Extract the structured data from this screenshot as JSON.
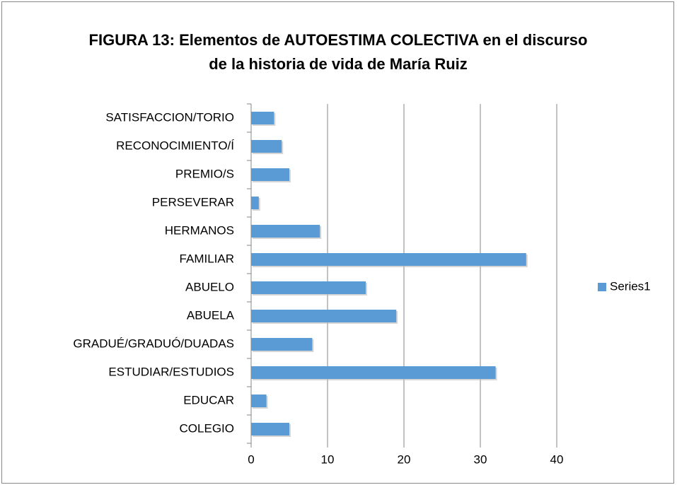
{
  "chart_data": {
    "type": "bar",
    "orientation": "horizontal",
    "title": "FIGURA 13: Elementos de AUTOESTIMA COLECTIVA en el discurso de la historia de vida de María Ruiz",
    "categories": [
      "COLEGIO",
      "EDUCAR",
      "ESTUDIAR/ESTUDIOS",
      "GRADUÉ/GRADUÓ/DUADAS",
      "ABUELA",
      "ABUELO",
      "FAMILIAR",
      "HERMANOS",
      "PERSEVERAR",
      "PREMIO/S",
      "RECONOCIMIENTO/Í",
      "SATISFACCION/TORIO"
    ],
    "series": [
      {
        "name": "Series1",
        "color": "#5b9bd5",
        "values": [
          5,
          2,
          32,
          8,
          19,
          15,
          36,
          9,
          1,
          5,
          4,
          3
        ]
      }
    ],
    "xlim": [
      0,
      40
    ],
    "xticks": [
      0,
      10,
      20,
      30,
      40
    ],
    "grid": true,
    "legend": "right"
  }
}
